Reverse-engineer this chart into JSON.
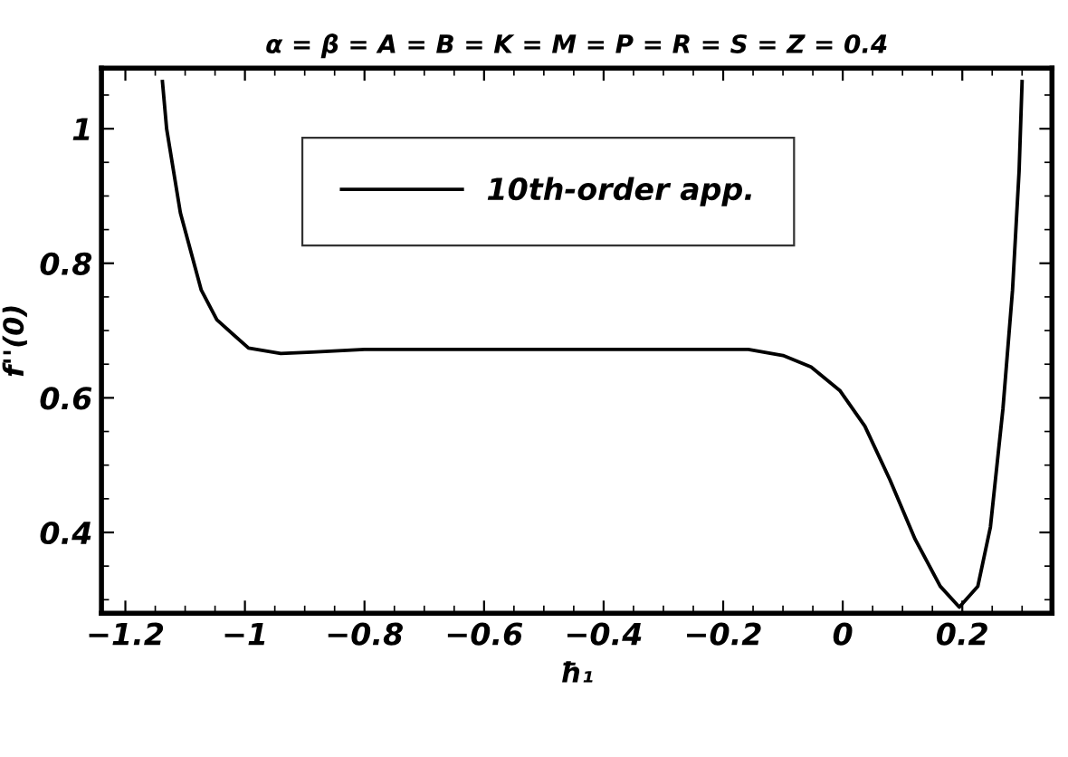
{
  "chart_data": {
    "type": "line",
    "title": "α = β = A = B = K = M = P = R = S = Z = 0.4",
    "xlabel": "ħ₁",
    "ylabel": "f''(0)",
    "xlim": [
      -1.24,
      0.35
    ],
    "ylim": [
      0.28,
      1.09
    ],
    "xticks": [
      {
        "value": -1.2,
        "label": "−1.2"
      },
      {
        "value": -1,
        "label": "−1"
      },
      {
        "value": -0.8,
        "label": "−0.8"
      },
      {
        "value": -0.6,
        "label": "−0.6"
      },
      {
        "value": -0.4,
        "label": "−0.4"
      },
      {
        "value": -0.2,
        "label": "−0.2"
      },
      0,
      0.2
    ],
    "yticks": [
      0.4,
      0.6,
      0.8,
      1
    ],
    "grid": false,
    "legend": "top",
    "marker": "none",
    "line_style": "solid",
    "series": [
      {
        "name": "10th-order app.",
        "color": "#000000",
        "x": [
          -1.138,
          -1.131,
          -1.108,
          -1.073,
          -1.047,
          -0.994,
          -0.94,
          -0.888,
          -0.8,
          -0.6,
          -0.4,
          -0.2,
          -0.158,
          -0.1,
          -0.053,
          -0.005,
          0.037,
          0.079,
          0.121,
          0.163,
          0.195,
          0.226,
          0.247,
          0.268,
          0.284,
          0.295,
          0.3
        ],
        "values": [
          1.07,
          1.0,
          0.875,
          0.76,
          0.716,
          0.674,
          0.666,
          0.668,
          0.672,
          0.672,
          0.672,
          0.672,
          0.672,
          0.663,
          0.646,
          0.611,
          0.558,
          0.478,
          0.39,
          0.32,
          0.289,
          0.32,
          0.408,
          0.584,
          0.76,
          0.937,
          1.07
        ]
      }
    ]
  }
}
